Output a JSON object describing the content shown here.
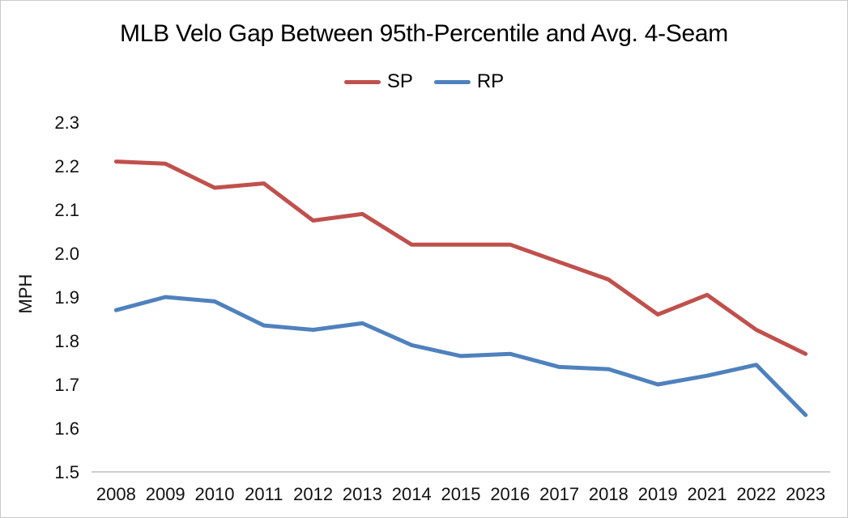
{
  "chart_data": {
    "type": "line",
    "title": "MLB Velo Gap Between 95th-Percentile and Avg. 4-Seam",
    "ylabel": "MPH",
    "xlabel": "",
    "ylim": [
      1.5,
      2.3
    ],
    "yticks": [
      2.3,
      2.2,
      2.1,
      2.0,
      1.9,
      1.8,
      1.7,
      1.6,
      1.5
    ],
    "grid": false,
    "legend_position": "top-center",
    "categories": [
      "2008",
      "2009",
      "2010",
      "2011",
      "2012",
      "2013",
      "2014",
      "2015",
      "2016",
      "2017",
      "2018",
      "2019",
      "2021",
      "2022",
      "2023"
    ],
    "series": [
      {
        "name": "SP",
        "color": "#C0504D",
        "values": [
          2.21,
          2.205,
          2.15,
          2.16,
          2.075,
          2.09,
          2.02,
          2.02,
          2.02,
          1.98,
          1.94,
          1.86,
          1.905,
          1.825,
          1.77
        ]
      },
      {
        "name": "RP",
        "color": "#4F81BD",
        "values": [
          1.87,
          1.9,
          1.89,
          1.835,
          1.825,
          1.84,
          1.79,
          1.765,
          1.77,
          1.74,
          1.735,
          1.7,
          1.72,
          1.745,
          1.63
        ]
      }
    ],
    "axis_line_color": "#BFBFBF"
  }
}
